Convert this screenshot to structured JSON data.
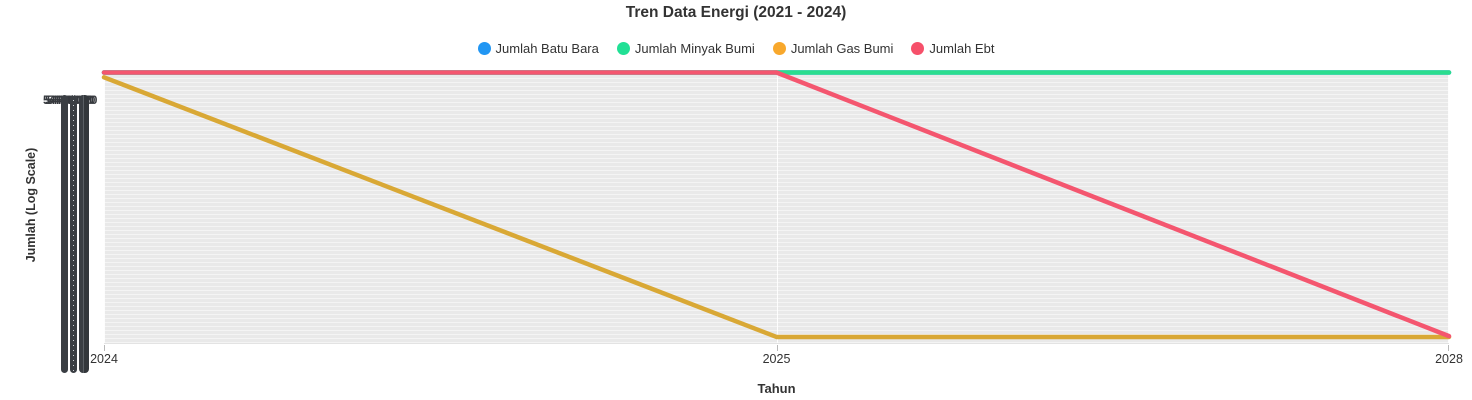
{
  "title": "Tren Data Energi (2021 - 2024)",
  "legend": {
    "items": [
      {
        "id": "batu-bara",
        "label": "Jumlah Batu Bara",
        "color": "#2196f3"
      },
      {
        "id": "minyak-bumi",
        "label": "Jumlah Minyak Bumi",
        "color": "#21e095"
      },
      {
        "id": "gas-bumi",
        "label": "Jumlah Gas Bumi",
        "color": "#f8a82c"
      },
      {
        "id": "ebt",
        "label": "Jumlah Ebt",
        "color": "#f6506a"
      }
    ]
  },
  "axes": {
    "x_title": "Tahun",
    "y_title": "Jumlah (Log Scale)",
    "x_tick_labels": [
      "2024",
      "2025",
      "2028"
    ],
    "y_tick_overlap_label": "544400.70"
  },
  "chart_data": {
    "type": "line",
    "title": "Tren Data Energi (2021 - 2024)",
    "xlabel": "Tahun",
    "ylabel": "Jumlah (Log Scale)",
    "y_scale": "log",
    "ylim": [
      1,
      544400.7
    ],
    "grid": true,
    "legend_position": "top",
    "plot_background": "#e9e9e9",
    "categories": [
      "2024",
      "2025",
      "2028"
    ],
    "series": [
      {
        "id": "batu-bara",
        "name": "Jumlah Batu Bara",
        "color": "#2196f3",
        "line_color": "#2196f3",
        "values": [
          544400.7,
          544400.7,
          544400.7
        ]
      },
      {
        "id": "minyak-bumi",
        "name": "Jumlah Minyak Bumi",
        "color": "#21e095",
        "line_color": "#2bdd8e",
        "values": [
          544400.7,
          544400.7,
          544400.7
        ]
      },
      {
        "id": "gas-bumi",
        "name": "Jumlah Gas Bumi",
        "color": "#f8a82c",
        "line_color": "#d9a835",
        "values": [
          430000,
          1.25,
          1.25
        ]
      },
      {
        "id": "ebt",
        "name": "Jumlah Ebt",
        "color": "#f6506a",
        "line_color": "#f4566f",
        "values": [
          544400.7,
          544400.7,
          1.3
        ]
      }
    ]
  }
}
